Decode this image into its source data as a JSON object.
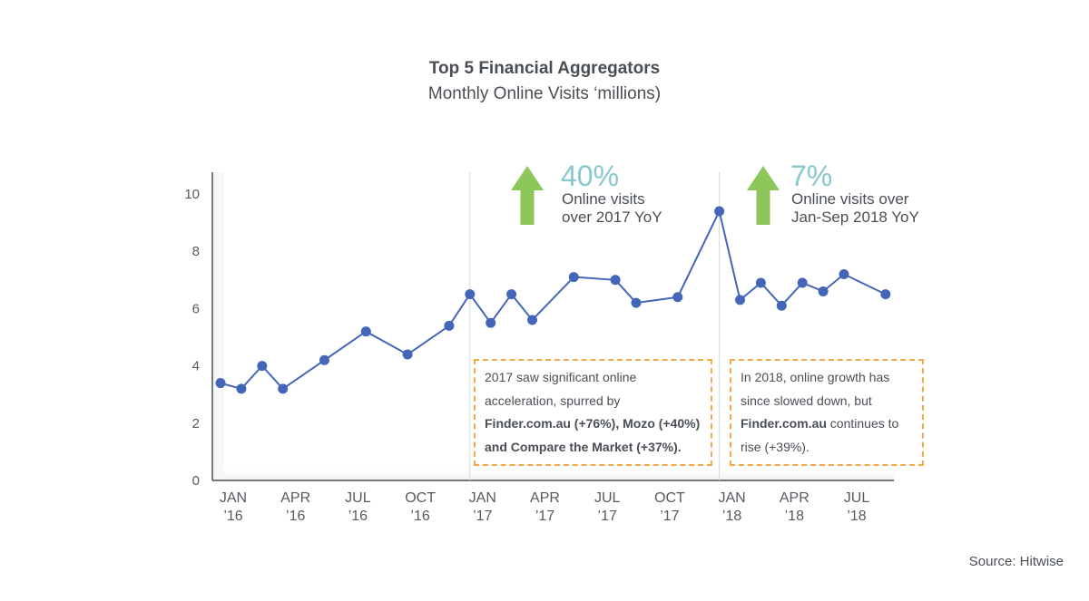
{
  "title": "Top 5 Financial Aggregators",
  "subtitle": "Monthly Online Visits ‘millions)",
  "source": "Source: Hitwise",
  "colors": {
    "line": "#4466b8",
    "arrow": "#8dc65a",
    "highlight": "#88c8cc",
    "note_border": "#f2a94a"
  },
  "highlights": [
    {
      "icon": "up-arrow-icon",
      "value": "40%",
      "line1": "Online visits",
      "line2": "over 2017 YoY"
    },
    {
      "icon": "up-arrow-icon",
      "value": "7%",
      "line1": "Online visits over",
      "line2": "Jan-Sep 2018 YoY"
    }
  ],
  "notes": [
    {
      "line1": "2017 saw significant online",
      "line2": "acceleration, spurred by",
      "line3": "Finder.com.au (+76%), Mozo (+40%)",
      "line4": "and Compare the Market (+37%)."
    },
    {
      "line1": "In 2018, online growth has",
      "line2": "since slowed down, but",
      "line3_bold": "Finder.com.au",
      "line3_rest": " continues to",
      "line4": "rise (+39%)."
    }
  ],
  "chart_data": {
    "type": "line",
    "x": [
      "Jan '16",
      "Feb '16",
      "Mar '16",
      "Apr '16",
      "May '16",
      "Jun '16",
      "Jul '16",
      "Aug '16",
      "Sep '16",
      "Oct '16",
      "Nov '16",
      "Dec '16",
      "Jan '17",
      "Feb '17",
      "Mar '17",
      "Apr '17",
      "May '17",
      "Jun '17",
      "Jul '17",
      "Aug '17",
      "Sep '17",
      "Oct '17",
      "Nov '17",
      "Dec '17",
      "Jan '18",
      "Feb '18",
      "Mar '18",
      "Apr '18",
      "May '18",
      "Jun '18",
      "Jul '18",
      "Aug '18",
      "Sep '18"
    ],
    "series": [
      {
        "values": [
          3.4,
          3.2,
          4.0,
          3.2,
          null,
          4.2,
          null,
          5.2,
          null,
          4.4,
          null,
          5.4,
          6.5,
          5.5,
          6.5,
          5.6,
          null,
          7.1,
          null,
          7.0,
          6.2,
          null,
          6.4,
          null,
          9.4,
          6.3,
          6.9,
          6.1,
          6.9,
          6.6,
          7.2,
          null,
          6.5
        ]
      }
    ],
    "ylim": [
      0,
      10
    ],
    "yticks": [
      0,
      2,
      4,
      6,
      8,
      10
    ],
    "xtick_labels": [
      {
        "month": "JAN",
        "year": "’16"
      },
      {
        "month": "APR",
        "year": "’16"
      },
      {
        "month": "JUL",
        "year": "’16"
      },
      {
        "month": "OCT",
        "year": "’16"
      },
      {
        "month": "JAN",
        "year": "’17"
      },
      {
        "month": "APR",
        "year": "’17"
      },
      {
        "month": "JUL",
        "year": "’17"
      },
      {
        "month": "OCT",
        "year": "’17"
      },
      {
        "month": "JAN",
        "year": "’18"
      },
      {
        "month": "APR",
        "year": "’18"
      },
      {
        "month": "JUL",
        "year": "’18"
      }
    ],
    "grid": false,
    "reference_lines": [
      "Jan '17",
      "Jan '18"
    ]
  }
}
